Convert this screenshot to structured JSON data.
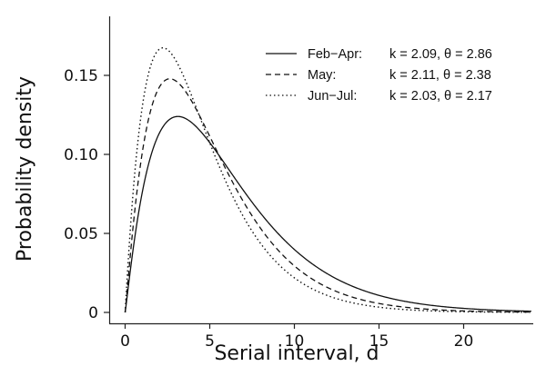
{
  "chart_data": {
    "type": "line",
    "title": "",
    "xlabel": "Serial interval, d",
    "ylabel": "Probability density",
    "xlim": [
      0,
      24
    ],
    "ylim": [
      0,
      0.175
    ],
    "xticks": [
      "0",
      "5",
      "10",
      "15",
      "20"
    ],
    "xtick_values": [
      0,
      5,
      10,
      15,
      20
    ],
    "yticks": [
      "0",
      "0.05",
      "0.10",
      "0.15"
    ],
    "ytick_values": [
      0,
      0.05,
      0.1,
      0.15
    ],
    "grid": false,
    "legend_position": "top-right",
    "distribution": "gamma",
    "series": [
      {
        "name": "Feb−Apr:",
        "params_label": "k = 2.09, θ = 2.86",
        "k": 2.09,
        "theta": 2.86,
        "style": "solid"
      },
      {
        "name": "May:",
        "params_label": "k = 2.11, θ = 2.38",
        "k": 2.11,
        "theta": 2.38,
        "style": "dashed"
      },
      {
        "name": "Jun−Jul:",
        "params_label": "k = 2.03, θ = 2.17",
        "k": 2.03,
        "theta": 2.17,
        "style": "dotted"
      }
    ]
  }
}
